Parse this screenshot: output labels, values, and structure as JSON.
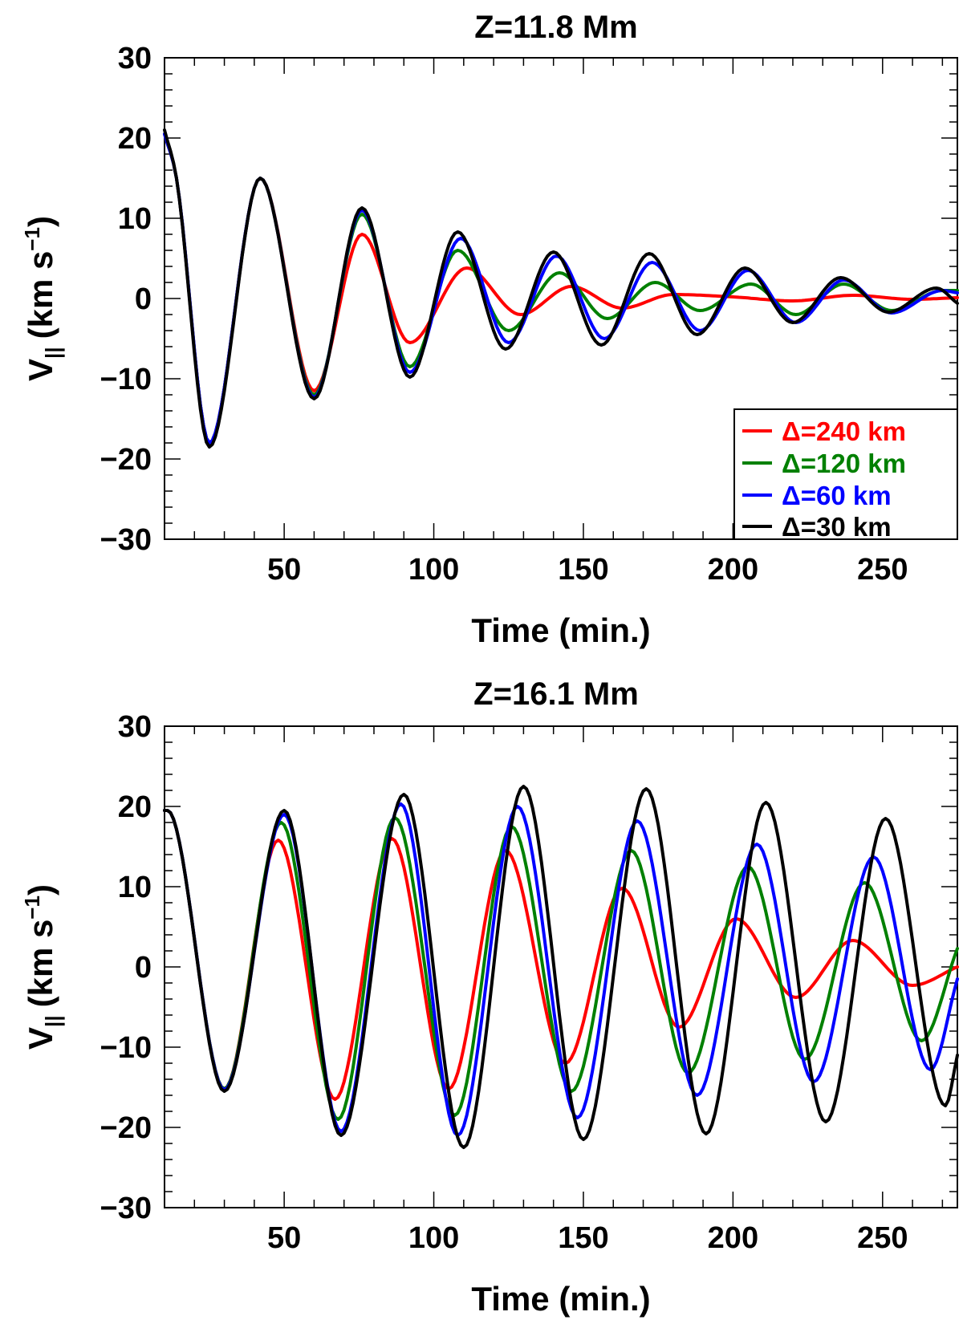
{
  "chart_data": [
    {
      "type": "line",
      "title": "Z=11.8 Mm",
      "xlabel": "Time (min.)",
      "ylabel": "V",
      "ylabel_sub": "||",
      "ylabel_units": "(km s",
      "ylabel_sup": "−1",
      "ylabel_close": ")",
      "xlim": [
        10,
        275
      ],
      "ylim": [
        -30,
        30
      ],
      "xticks": [
        50,
        100,
        150,
        200,
        250
      ],
      "yticks": [
        -30,
        -20,
        -10,
        0,
        10,
        20,
        30
      ],
      "ytick_labels": [
        "−30",
        "−20",
        "−10",
        "0",
        "10",
        "20",
        "30"
      ],
      "legend_position": "bottom-right",
      "series": [
        {
          "name": "Δ=240 km",
          "color": "#ff0000",
          "x": [
            10,
            14,
            25,
            42,
            60,
            76,
            92,
            111,
            129,
            146,
            163,
            180,
            200,
            220,
            240,
            260,
            275
          ],
          "y": [
            20.5,
            15,
            -18,
            15,
            -11.5,
            8,
            -5.5,
            3.8,
            -2,
            1.5,
            -1.2,
            0.5,
            0.2,
            -0.3,
            0.4,
            -0.1,
            0.1
          ]
        },
        {
          "name": "Δ=120 km",
          "color": "#008000",
          "x": [
            10,
            14,
            25,
            42,
            60,
            76,
            92,
            108,
            125,
            142,
            158,
            174,
            189,
            206,
            221,
            237,
            253,
            270,
            275
          ],
          "y": [
            20.5,
            15,
            -18,
            15,
            -12,
            10.5,
            -8.5,
            6,
            -4,
            3.2,
            -2.5,
            2,
            -1.5,
            1.8,
            -2,
            1.8,
            -1.5,
            1,
            1
          ]
        },
        {
          "name": "Δ=60 km",
          "color": "#0000ff",
          "x": [
            10,
            14,
            25,
            42,
            60,
            76,
            92,
            109,
            125,
            141,
            157,
            173,
            189,
            205,
            221,
            237,
            253,
            270,
            275
          ],
          "y": [
            20.5,
            15,
            -18,
            15,
            -12.3,
            11,
            -9.2,
            7.5,
            -5.5,
            5.3,
            -5,
            4.5,
            -4,
            3.5,
            -3,
            2.3,
            -1.8,
            1,
            0.7
          ]
        },
        {
          "name": "Δ=30 km",
          "color": "#000000",
          "x": [
            10,
            14,
            25,
            42,
            60,
            76,
            92,
            108,
            124,
            140,
            156,
            172,
            188,
            204,
            220,
            236,
            252,
            268,
            275
          ],
          "y": [
            21,
            15,
            -18.5,
            15,
            -12.5,
            11.3,
            -9.8,
            8.3,
            -6.3,
            5.8,
            -5.8,
            5.6,
            -4.5,
            3.8,
            -3,
            2.6,
            -1.7,
            1.3,
            -0.6
          ]
        }
      ],
      "legend": [
        "Δ=240 km",
        "Δ=120 km",
        "Δ=60 km",
        "Δ=30 km"
      ]
    },
    {
      "type": "line",
      "title": "Z=16.1 Mm",
      "xlabel": "Time (min.)",
      "ylabel": "V",
      "ylabel_sub": "||",
      "ylabel_units": "(km s",
      "ylabel_sup": "−1",
      "ylabel_close": ")",
      "xlim": [
        10,
        275
      ],
      "ylim": [
        -30,
        30
      ],
      "xticks": [
        50,
        100,
        150,
        200,
        250
      ],
      "yticks": [
        -30,
        -20,
        -10,
        0,
        10,
        20,
        30
      ],
      "ytick_labels": [
        "−30",
        "−20",
        "−10",
        "0",
        "10",
        "20",
        "30"
      ],
      "series": [
        {
          "name": "Δ=240 km",
          "color": "#ff0000",
          "x": [
            10,
            11,
            30,
            48,
            67,
            86,
            105,
            124,
            144,
            163,
            182,
            201,
            221,
            240,
            260,
            275
          ],
          "y": [
            19.5,
            19.5,
            -15.2,
            15.8,
            -16.5,
            16,
            -15.2,
            14.5,
            -12,
            9.8,
            -7.5,
            6,
            -3.8,
            3.3,
            -2.3,
            0
          ]
        },
        {
          "name": "Δ=120 km",
          "color": "#008000",
          "x": [
            10,
            11,
            30,
            49,
            68,
            87,
            107,
            126,
            146,
            166,
            185,
            205,
            224,
            244,
            263,
            275
          ],
          "y": [
            19.5,
            19.5,
            -15.2,
            18,
            -19,
            18.6,
            -18.5,
            17.5,
            -15.5,
            14.5,
            -13.2,
            12.5,
            -11.5,
            10.5,
            -9.2,
            2.3
          ]
        },
        {
          "name": "Δ=60 km",
          "color": "#0000ff",
          "x": [
            10,
            11,
            30,
            50,
            69,
            89,
            108,
            128,
            148,
            168,
            188,
            208,
            227,
            247,
            266,
            275
          ],
          "y": [
            19.5,
            19.5,
            -15.3,
            19,
            -20.5,
            20.3,
            -21,
            20,
            -18.8,
            18.2,
            -16,
            15.3,
            -14.3,
            13.7,
            -12.8,
            -1.5
          ]
        },
        {
          "name": "Δ=30 km",
          "color": "#000000",
          "x": [
            10,
            11,
            30,
            50,
            69,
            90,
            110,
            130,
            150,
            171,
            191,
            211,
            231,
            251,
            271,
            275
          ],
          "y": [
            19.5,
            19.5,
            -15.5,
            19.5,
            -21,
            21.5,
            -22.5,
            22.5,
            -21.5,
            22.2,
            -20.8,
            20.5,
            -19.3,
            18.5,
            -17.3,
            -11
          ]
        }
      ]
    }
  ]
}
